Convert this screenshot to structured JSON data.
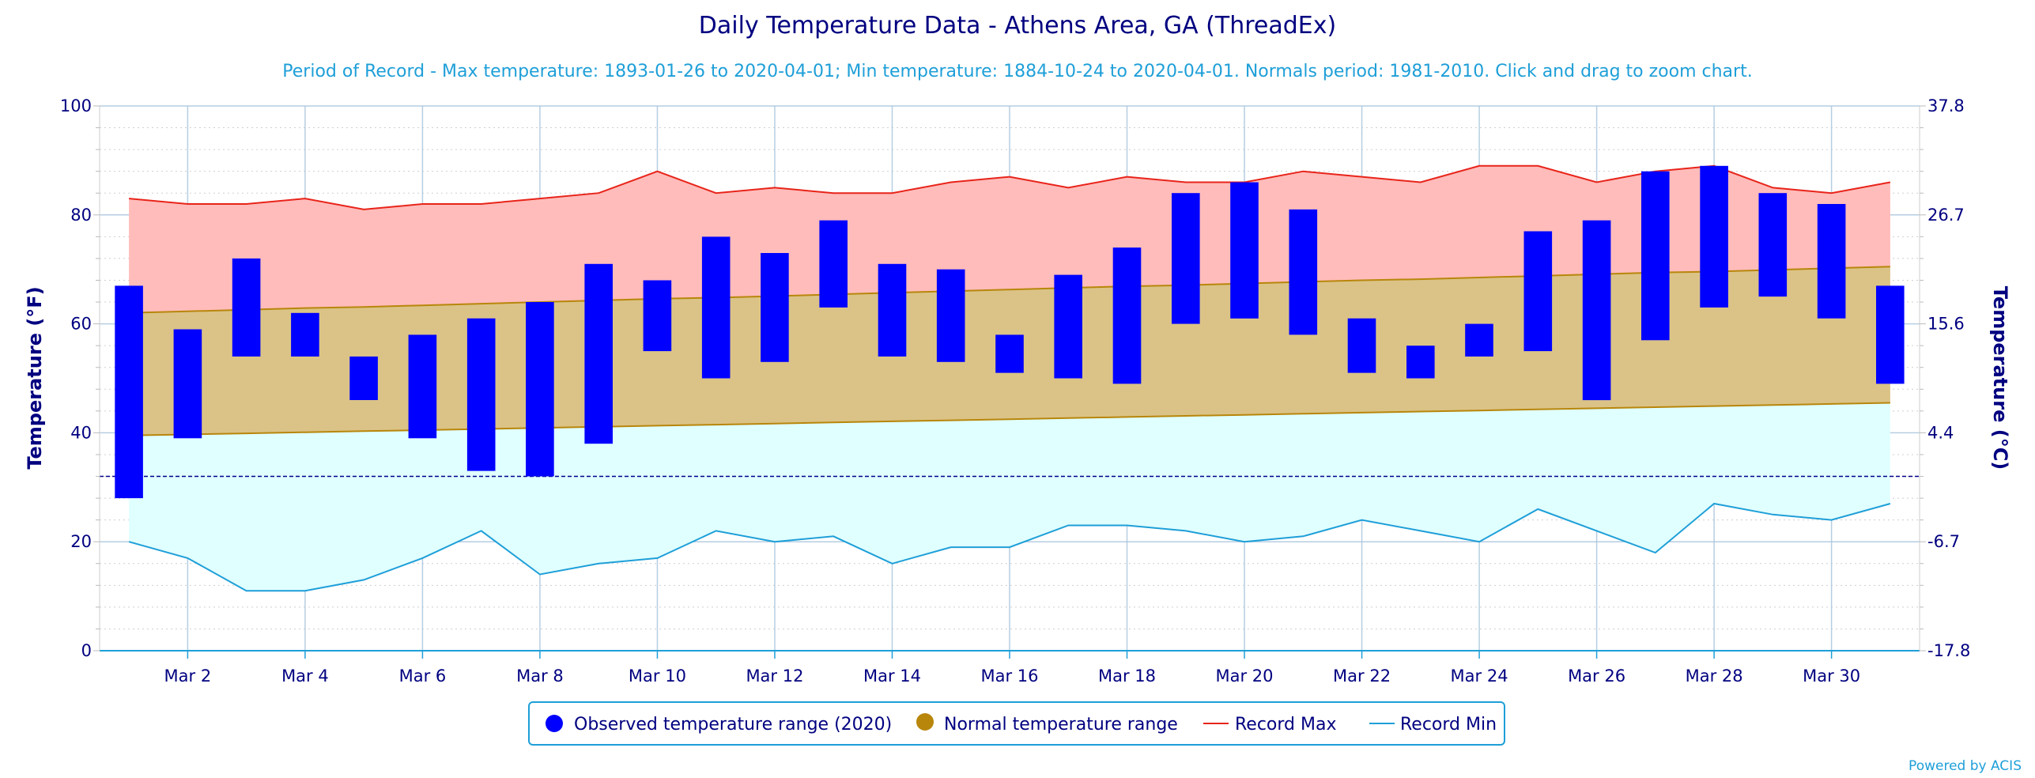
{
  "chart_data": {
    "type": "bar",
    "title": "Daily Temperature Data - Athens Area, GA (ThreadEx)",
    "subtitle": "Period of Record - Max temperature: 1893-01-26 to 2020-04-01; Min temperature: 1884-10-24 to 2020-04-01. Normals period: 1981-2010. Click and drag to zoom chart.",
    "ylabel_left": "Temperature (°F)",
    "ylabel_right": "Temperature (°C)",
    "ylim": [
      0,
      100
    ],
    "y_ticks_left": [
      "0",
      "20",
      "40",
      "60",
      "80",
      "100"
    ],
    "y_ticks_right": [
      "-17.8",
      "-6.7",
      "4.4",
      "15.6",
      "26.7",
      "37.8"
    ],
    "freezing_line": 32,
    "days": [
      1,
      2,
      3,
      4,
      5,
      6,
      7,
      8,
      9,
      10,
      11,
      12,
      13,
      14,
      15,
      16,
      17,
      18,
      19,
      20,
      21,
      22,
      23,
      24,
      25,
      26,
      27,
      28,
      29,
      30,
      31
    ],
    "x_tick_labels": [
      "Mar 2",
      "Mar 4",
      "Mar 6",
      "Mar 8",
      "Mar 10",
      "Mar 12",
      "Mar 14",
      "Mar 16",
      "Mar 18",
      "Mar 20",
      "Mar 22",
      "Mar 24",
      "Mar 26",
      "Mar 28",
      "Mar 30"
    ],
    "series": [
      {
        "name": "Observed temperature range (2020)",
        "color": "#0000ff",
        "high": [
          67,
          59,
          72,
          62,
          54,
          58,
          61,
          64,
          71,
          68,
          76,
          73,
          79,
          71,
          70,
          58,
          69,
          74,
          84,
          86,
          81,
          61,
          56,
          60,
          77,
          79,
          88,
          89,
          84,
          82,
          67
        ],
        "low": [
          28,
          39,
          54,
          54,
          46,
          39,
          33,
          32,
          38,
          55,
          50,
          53,
          63,
          54,
          53,
          51,
          50,
          49,
          60,
          61,
          58,
          51,
          50,
          54,
          55,
          46,
          57,
          63,
          65,
          61,
          49
        ]
      },
      {
        "name": "Normal temperature range",
        "color": "#b8860b",
        "high": [
          62.0,
          62.3,
          62.6,
          62.9,
          63.1,
          63.4,
          63.7,
          64.0,
          64.3,
          64.6,
          64.8,
          65.1,
          65.4,
          65.7,
          66.0,
          66.3,
          66.6,
          66.9,
          67.1,
          67.4,
          67.7,
          68.0,
          68.2,
          68.5,
          68.8,
          69.1,
          69.4,
          69.6,
          69.9,
          70.2,
          70.5
        ],
        "low": [
          39.5,
          39.7,
          39.9,
          40.1,
          40.3,
          40.5,
          40.7,
          40.9,
          41.1,
          41.3,
          41.5,
          41.7,
          41.9,
          42.1,
          42.3,
          42.5,
          42.7,
          42.9,
          43.1,
          43.3,
          43.5,
          43.7,
          43.9,
          44.1,
          44.3,
          44.5,
          44.7,
          44.9,
          45.1,
          45.3,
          45.5
        ]
      },
      {
        "name": "Record Max",
        "color": "#e8241a",
        "values": [
          83,
          82,
          82,
          83,
          81,
          82,
          82,
          83,
          84,
          88,
          84,
          85,
          84,
          84,
          86,
          87,
          85,
          87,
          86,
          86,
          88,
          87,
          86,
          89,
          89,
          86,
          88,
          89,
          85,
          84,
          86
        ]
      },
      {
        "name": "Record Min",
        "color": "#1e9fd8",
        "values": [
          20,
          17,
          11,
          11,
          13,
          17,
          22,
          14,
          16,
          17,
          22,
          20,
          21,
          16,
          19,
          19,
          23,
          23,
          22,
          20,
          21,
          24,
          22,
          20,
          26,
          22,
          18,
          27,
          25,
          24,
          27
        ]
      }
    ],
    "legend_position": "bottom-center",
    "grid": true
  },
  "credit": "Powered by ACIS"
}
